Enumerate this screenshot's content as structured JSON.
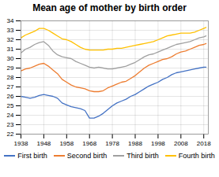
{
  "chart_data": {
    "type": "line",
    "title": "Mean age of mother by birth order",
    "x": [
      1938,
      1940,
      1942,
      1944,
      1946,
      1948,
      1950,
      1952,
      1954,
      1956,
      1958,
      1960,
      1962,
      1964,
      1966,
      1968,
      1970,
      1972,
      1974,
      1976,
      1978,
      1980,
      1982,
      1984,
      1986,
      1988,
      1990,
      1992,
      1994,
      1996,
      1998,
      2000,
      2002,
      2004,
      2006,
      2008,
      2010,
      2012,
      2014,
      2016,
      2018,
      2019
    ],
    "series": [
      {
        "name": "First birth",
        "color": "#4472c4",
        "values": [
          26.0,
          25.9,
          25.8,
          25.9,
          26.1,
          26.2,
          26.1,
          26.0,
          25.8,
          25.3,
          25.1,
          24.9,
          24.8,
          24.7,
          24.5,
          23.7,
          23.7,
          23.9,
          24.2,
          24.6,
          25.0,
          25.3,
          25.5,
          25.7,
          26.0,
          26.2,
          26.5,
          26.8,
          27.1,
          27.3,
          27.5,
          27.8,
          28.0,
          28.3,
          28.5,
          28.6,
          28.7,
          28.8,
          28.9,
          29.0,
          29.1,
          29.1
        ]
      },
      {
        "name": "Second birth",
        "color": "#ed7d31",
        "values": [
          28.7,
          28.9,
          29.0,
          29.2,
          29.4,
          29.5,
          29.2,
          28.8,
          28.4,
          27.8,
          27.5,
          27.2,
          27.0,
          26.9,
          26.8,
          26.6,
          26.5,
          26.5,
          26.6,
          26.9,
          27.1,
          27.3,
          27.5,
          27.6,
          27.9,
          28.2,
          28.6,
          29.0,
          29.3,
          29.5,
          29.7,
          29.9,
          30.0,
          30.2,
          30.5,
          30.7,
          30.8,
          31.0,
          31.2,
          31.4,
          31.5,
          31.6
        ]
      },
      {
        "name": "Third birth",
        "color": "#a0a0a0",
        "values": [
          30.6,
          31.0,
          31.2,
          31.5,
          31.7,
          31.8,
          31.4,
          30.8,
          30.4,
          30.2,
          30.1,
          30.0,
          29.7,
          29.5,
          29.3,
          29.1,
          29.0,
          29.1,
          29.0,
          28.9,
          28.9,
          29.0,
          29.1,
          29.2,
          29.4,
          29.6,
          29.9,
          30.2,
          30.4,
          30.5,
          30.7,
          30.9,
          31.1,
          31.3,
          31.5,
          31.6,
          31.7,
          31.8,
          32.0,
          32.2,
          32.3,
          32.4
        ]
      },
      {
        "name": "Fourth birth",
        "color": "#ffc000",
        "values": [
          32.2,
          32.5,
          32.7,
          32.9,
          33.2,
          33.2,
          33.0,
          32.7,
          32.4,
          32.1,
          32.0,
          31.8,
          31.5,
          31.2,
          31.0,
          30.9,
          30.9,
          30.9,
          30.9,
          31.0,
          31.0,
          31.1,
          31.1,
          31.2,
          31.3,
          31.4,
          31.5,
          31.6,
          31.7,
          31.8,
          32.0,
          32.2,
          32.4,
          32.5,
          32.6,
          32.7,
          32.7,
          32.7,
          32.8,
          33.0,
          33.2,
          33.3
        ]
      }
    ],
    "xlim": [
      1938,
      2020
    ],
    "xticks": [
      1938,
      1948,
      1958,
      1968,
      1978,
      1988,
      1998,
      2008,
      2018
    ],
    "ylim": [
      22,
      34
    ],
    "yticks": [
      22,
      23,
      24,
      25,
      26,
      27,
      28,
      29,
      30,
      31,
      32,
      33,
      34
    ],
    "grid": true,
    "legend": "bottom"
  }
}
